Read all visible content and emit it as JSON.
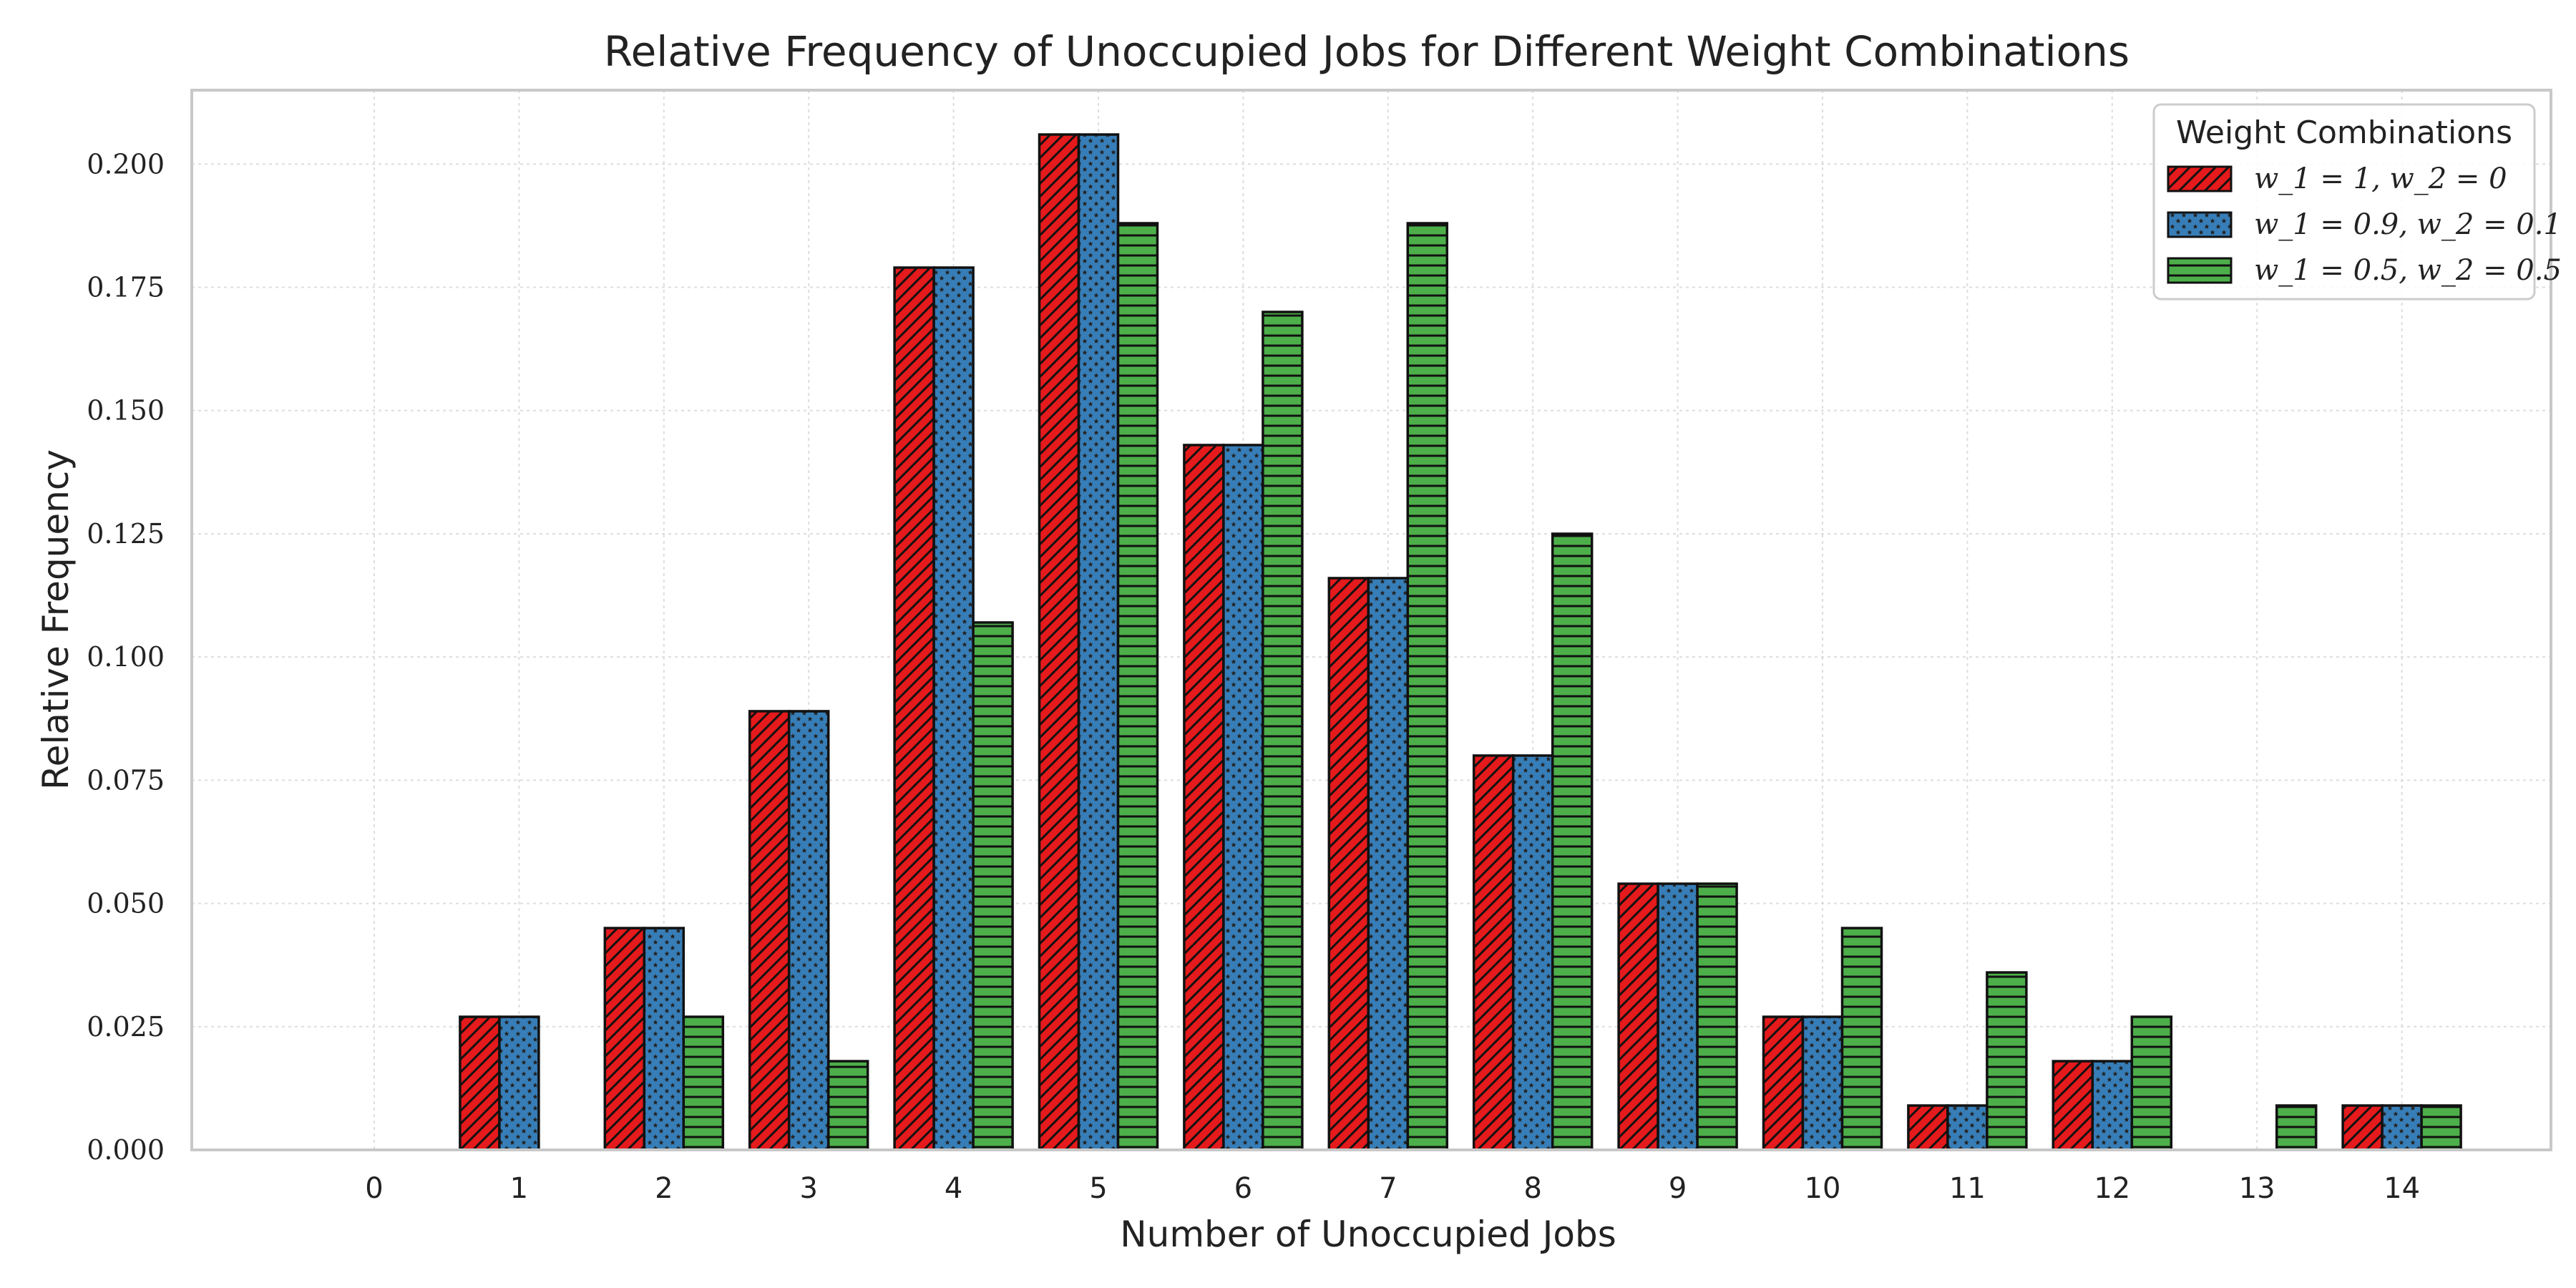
{
  "chart_data": {
    "type": "bar",
    "title": "Relative Frequency of Unoccupied Jobs for Different Weight Combinations",
    "xlabel": "Number of Unoccupied Jobs",
    "ylabel": "Relative Frequency",
    "categories": [
      "0",
      "1",
      "2",
      "3",
      "4",
      "5",
      "6",
      "7",
      "8",
      "9",
      "10",
      "11",
      "12",
      "13",
      "14"
    ],
    "ylim": [
      0,
      0.215
    ],
    "yticks": [
      "0.000",
      "0.025",
      "0.050",
      "0.075",
      "0.100",
      "0.125",
      "0.150",
      "0.175",
      "0.200"
    ],
    "grid": true,
    "legend": {
      "title": "Weight Combinations",
      "placement": "top-right"
    },
    "series": [
      {
        "name": "w_1 = 1, w_2 = 0",
        "color": "#e41a1c",
        "hatch": "diagonal",
        "values": [
          0,
          0.027,
          0.045,
          0.089,
          0.179,
          0.206,
          0.143,
          0.116,
          0.08,
          0.054,
          0.027,
          0.009,
          0.018,
          0,
          0.009
        ]
      },
      {
        "name": "w_1 = 0.9, w_2 = 0.1",
        "color": "#377eb8",
        "hatch": "stars",
        "values": [
          0,
          0.027,
          0.045,
          0.089,
          0.179,
          0.206,
          0.143,
          0.116,
          0.08,
          0.054,
          0.027,
          0.009,
          0.018,
          0,
          0.009
        ]
      },
      {
        "name": "w_1 = 0.5, w_2 = 0.5",
        "color": "#4daf4a",
        "hatch": "horizontal",
        "values": [
          0,
          0,
          0.027,
          0.018,
          0.107,
          0.188,
          0.17,
          0.188,
          0.125,
          0.054,
          0.045,
          0.036,
          0.027,
          0.009,
          0.009
        ]
      }
    ]
  }
}
